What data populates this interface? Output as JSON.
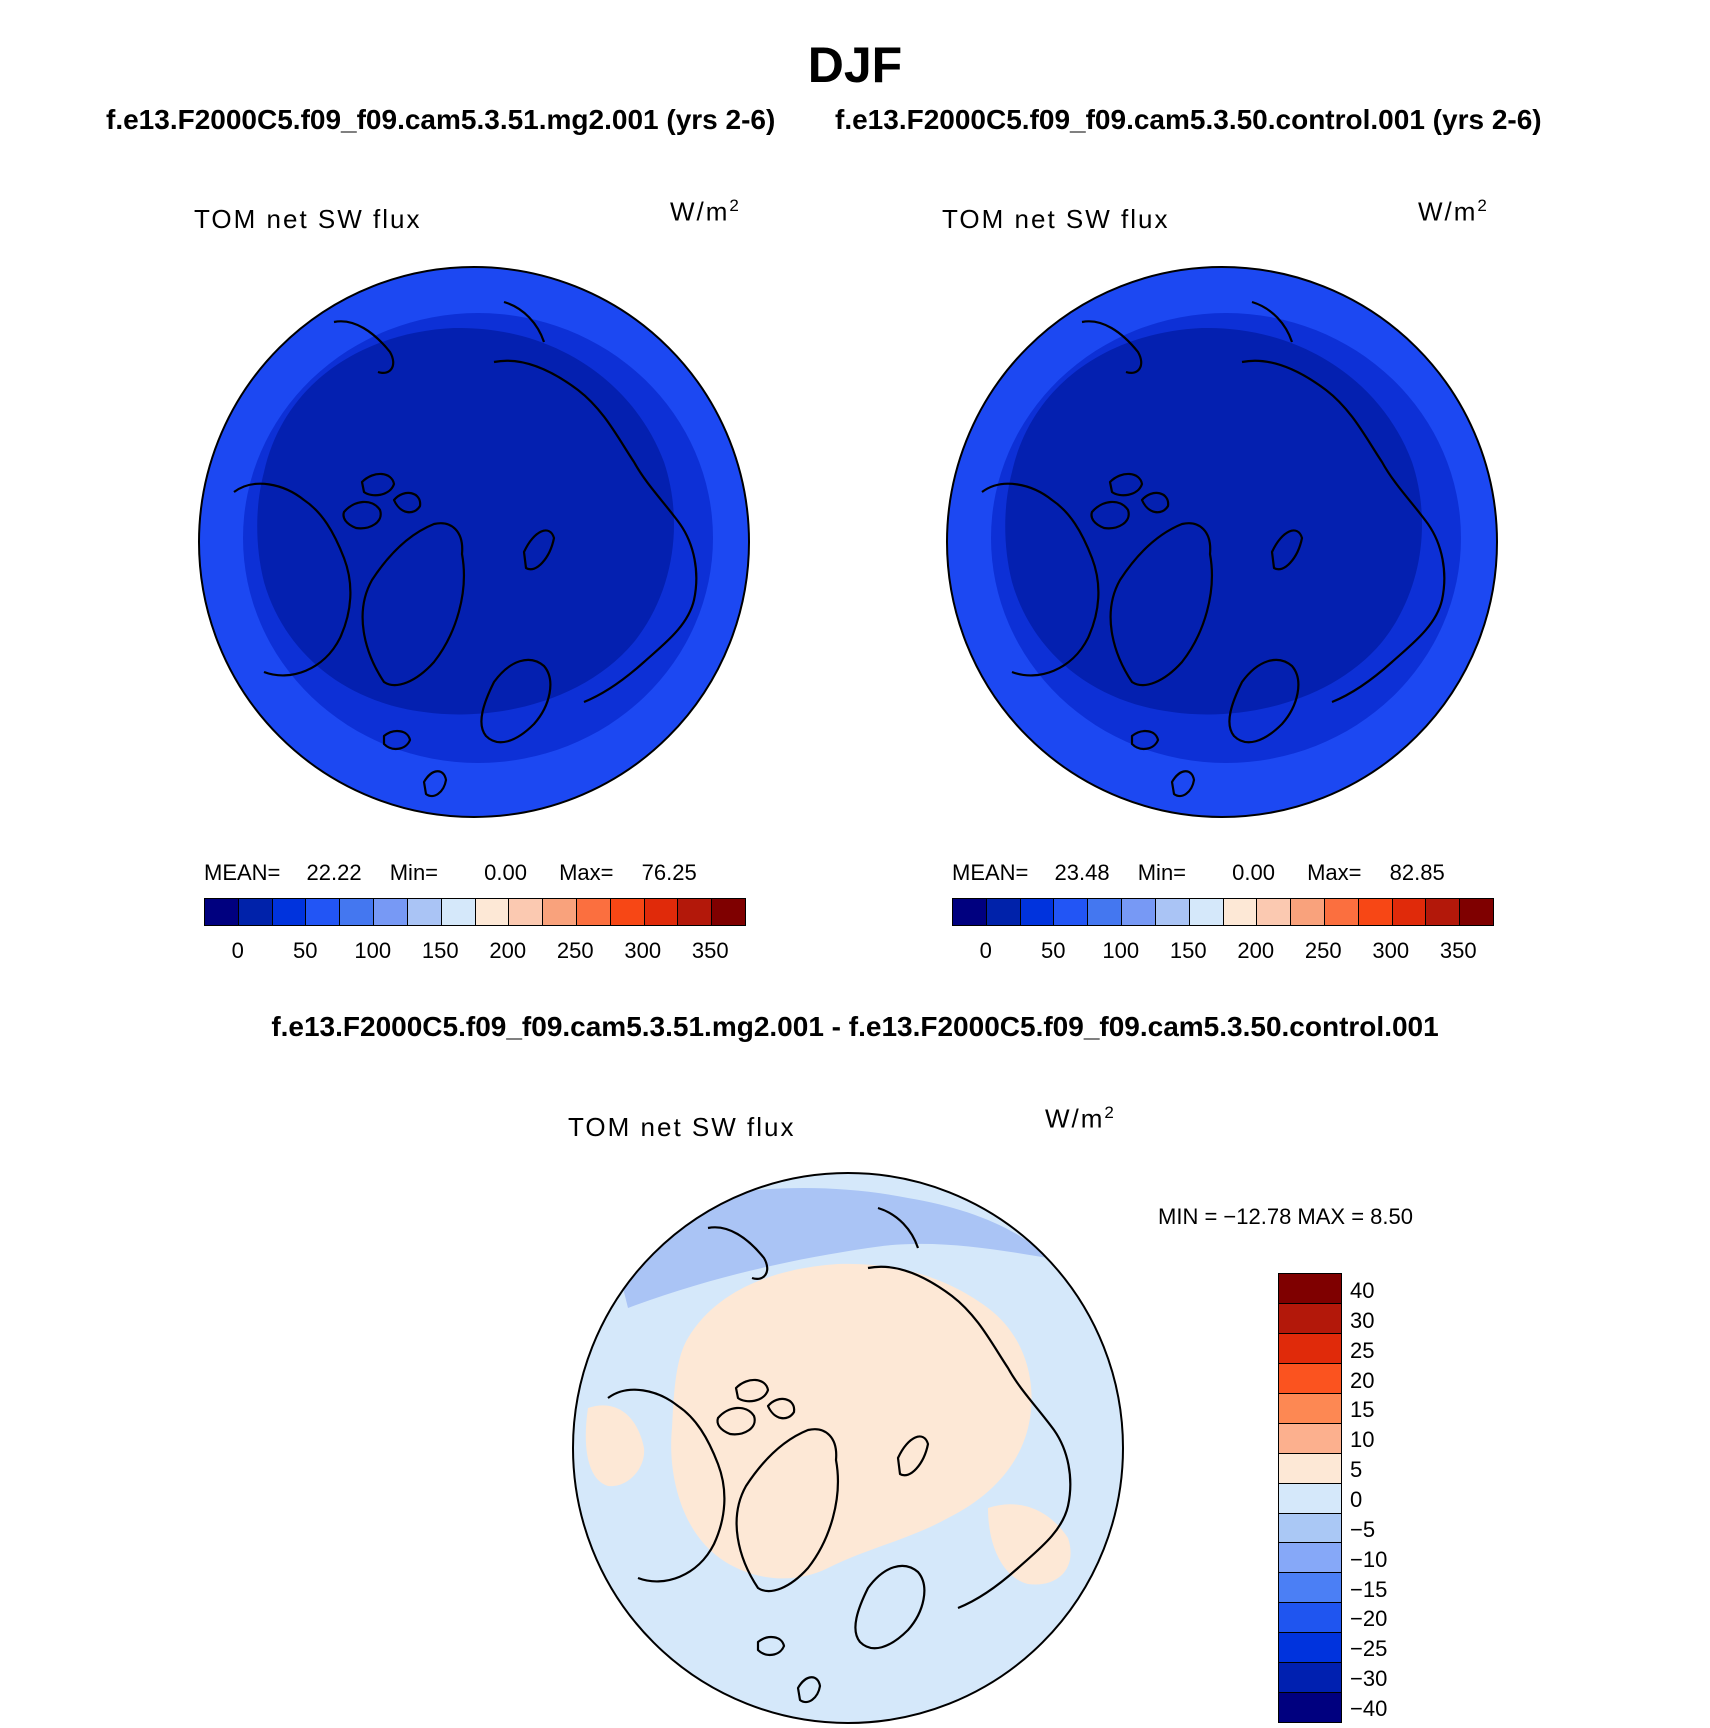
{
  "season": "DJF",
  "case_titles": [
    "f.e13.F2000C5.f09_f09.cam5.3.51.mg2.001 (yrs 2-6)",
    "f.e13.F2000C5.f09_f09.cam5.3.50.control.001 (yrs 2-6)"
  ],
  "diff_title": "f.e13.F2000C5.f09_f09.cam5.3.51.mg2.001 - f.e13.F2000C5.f09_f09.cam5.3.50.control.001",
  "panels": [
    {
      "variable": "TOM net SW flux",
      "units": "W/m",
      "units_sup": "2",
      "mean_label": "MEAN=",
      "mean": "22.22",
      "min_label": "Min=",
      "min": "0.00",
      "max_label": "Max=",
      "max": "76.25"
    },
    {
      "variable": "TOM net SW flux",
      "units": "W/m",
      "units_sup": "2",
      "mean_label": "MEAN=",
      "mean": "23.48",
      "min_label": "Min=",
      "min": "0.00",
      "max_label": "Max=",
      "max": "82.85"
    }
  ],
  "diff_panel": {
    "variable": "TOM net SW flux",
    "units": "W/m",
    "units_sup": "2",
    "minmax_text": "MIN = −12.78 MAX =    8.50"
  },
  "colorbar_abs": {
    "colors": [
      "#00007f",
      "#0022aa",
      "#0033dd",
      "#2255f5",
      "#4477f0",
      "#7799f5",
      "#aac4f5",
      "#d5e8fa",
      "#fde8d6",
      "#fbc9b1",
      "#f9a27c",
      "#fb6f3f",
      "#f74715",
      "#e02a0a",
      "#b3180a",
      "#7f0000"
    ],
    "ticks": [
      "0",
      "50",
      "100",
      "150",
      "200",
      "250",
      "300",
      "350"
    ]
  },
  "colorbar_diff": {
    "colors": [
      "#7f0000",
      "#b3180a",
      "#e02a0a",
      "#fb531f",
      "#fd8853",
      "#fcb08e",
      "#fde8d6",
      "#d5e8fa",
      "#aac8f5",
      "#86a8f8",
      "#4b7ff5",
      "#1f55f0",
      "#0033dd",
      "#0020b0",
      "#00007f"
    ],
    "ticks": [
      "40",
      "30",
      "25",
      "20",
      "15",
      "10",
      "5",
      "0",
      "−5",
      "−10",
      "−15",
      "−20",
      "−25",
      "−30",
      "−40"
    ]
  },
  "map_colors": {
    "abs_outer": "#1c48f2",
    "abs_mid": "#0d30d6",
    "abs_inner": "#0420b0",
    "diff_neg": "#d5e8fa",
    "diff_pos": "#fde8d6",
    "diff_neg2": "#aac4f5"
  }
}
